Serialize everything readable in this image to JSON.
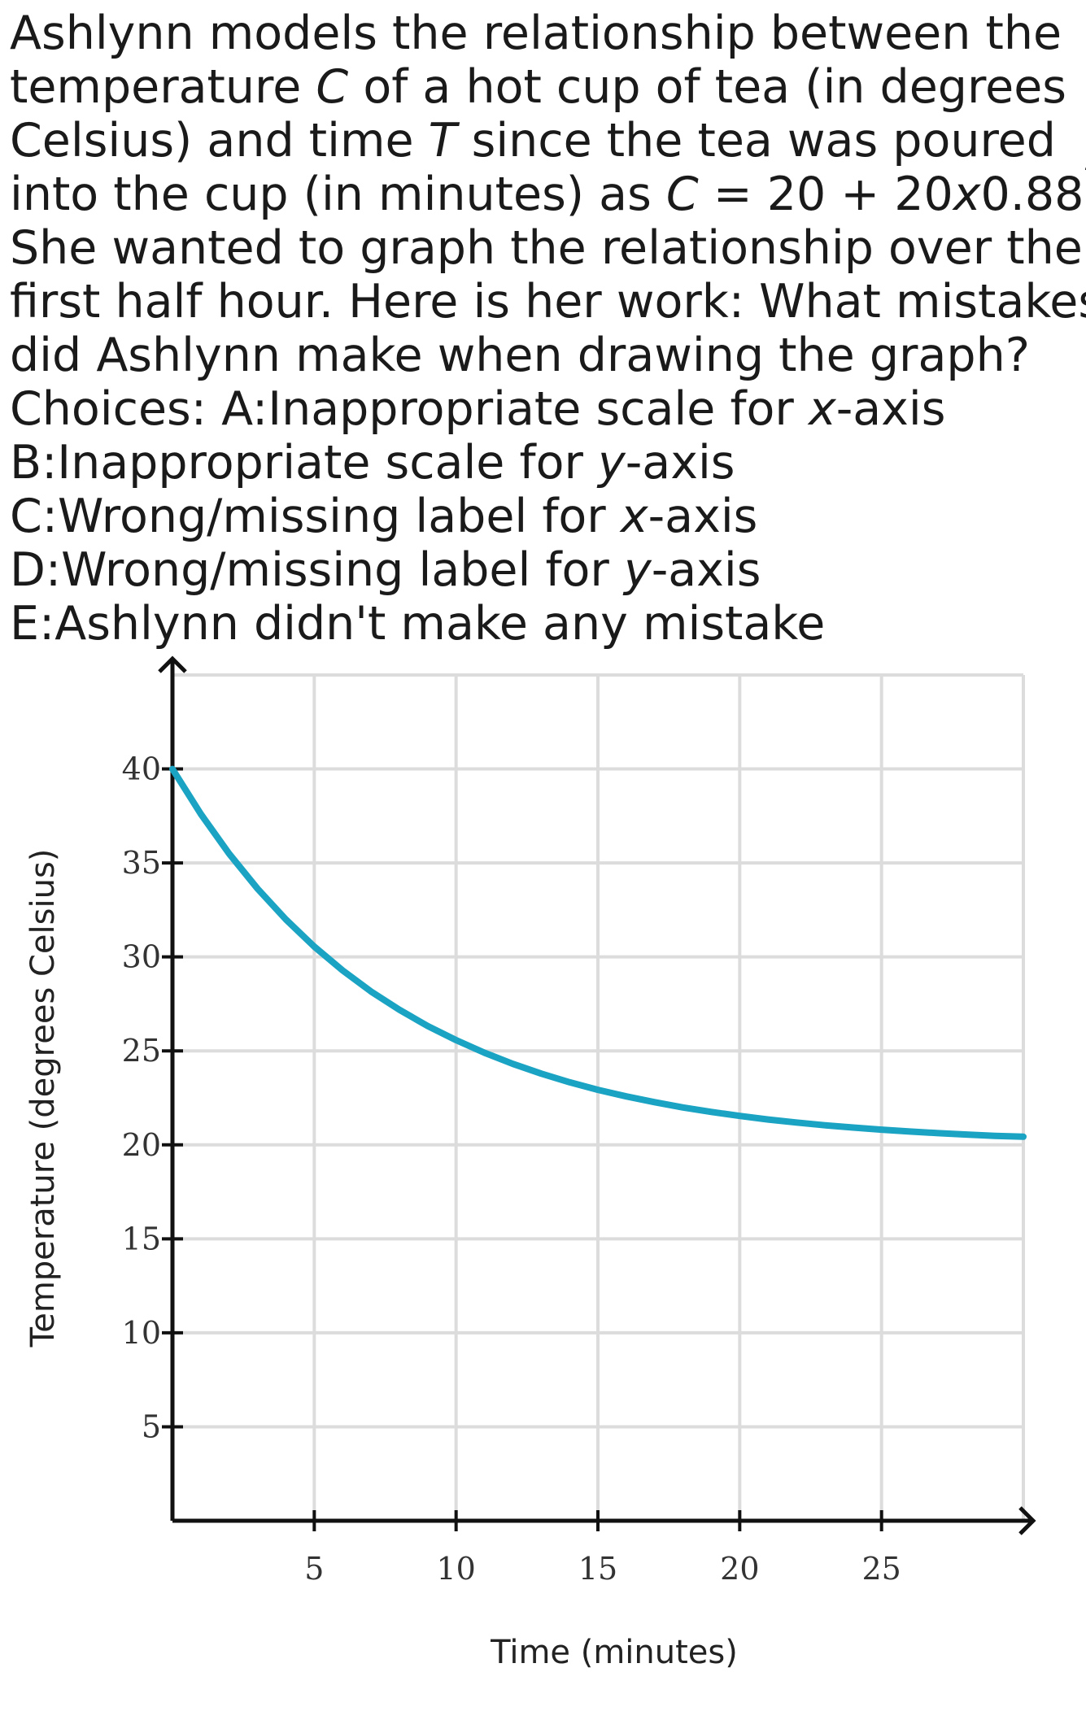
{
  "question": {
    "line1": "Ashlynn models the relationship between the",
    "line2_pre": "temperature ",
    "line2_var": "C",
    "line2_post": " of a hot cup of tea (in degrees",
    "line3_pre": "Celsius) and time ",
    "line3_var": "T",
    "line3_post": " since the tea was poured",
    "line4_pre": "into the cup (in minutes) as ",
    "line4_var1": "C",
    "line4_eq": " = 20 + 20",
    "line4_var2": "x",
    "line4_num": "0.88",
    "line4_exp": "T",
    "line4_end": ".",
    "line5": "She wanted to graph the relationship over the",
    "line6": "first half hour. Here is her work: What mistakes",
    "line7": "did Ashlynn make when drawing the graph?"
  },
  "choices": {
    "a_pre": "Choices: A:Inappropriate scale for ",
    "a_var": "x",
    "a_post": "-axis",
    "b_pre": "B:Inappropriate scale for ",
    "b_var": "y",
    "b_post": "-axis",
    "c_pre": "C:Wrong/missing label for ",
    "c_var": "x",
    "c_post": "-axis",
    "d_pre": "D:Wrong/missing label for ",
    "d_var": "y",
    "d_post": "-axis",
    "e": "E:Ashlynn didn't make any mistake"
  },
  "chart_data": {
    "type": "line",
    "xlabel": "Time (minutes)",
    "ylabel": "Temperature (degrees Celsius)",
    "xlim": [
      0,
      30
    ],
    "ylim": [
      0,
      45
    ],
    "x_ticks": [
      5,
      10,
      15,
      20,
      25
    ],
    "y_ticks": [
      5,
      10,
      15,
      20,
      25,
      30,
      35,
      40
    ],
    "grid": true,
    "series": [
      {
        "color": "#1aa3c2",
        "x": [
          0,
          1,
          2,
          3,
          4,
          5,
          6,
          7,
          8,
          9,
          10,
          11,
          12,
          13,
          14,
          15,
          16,
          17,
          18,
          19,
          20,
          21,
          22,
          23,
          24,
          25,
          26,
          27,
          28,
          29,
          30
        ],
        "y": [
          40.0,
          37.6,
          35.49,
          33.63,
          31.99,
          30.55,
          29.28,
          28.16,
          27.19,
          26.32,
          25.57,
          24.9,
          24.31,
          23.79,
          23.33,
          22.93,
          22.58,
          22.27,
          21.99,
          21.75,
          21.54,
          21.35,
          21.19,
          21.04,
          20.92,
          20.81,
          20.71,
          20.62,
          20.55,
          20.48,
          20.43
        ]
      }
    ]
  }
}
